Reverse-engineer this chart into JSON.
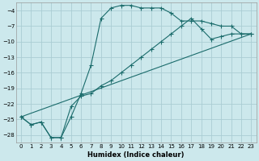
{
  "xlabel": "Humidex (Indice chaleur)",
  "bg_color": "#cce8ec",
  "grid_color": "#aacdd4",
  "line_color": "#1a6b6b",
  "xlim": [
    -0.5,
    23.5
  ],
  "ylim": [
    -29.5,
    -2.5
  ],
  "yticks": [
    -4,
    -7,
    -10,
    -13,
    -16,
    -19,
    -22,
    -25,
    -28
  ],
  "xticks": [
    0,
    1,
    2,
    3,
    4,
    5,
    6,
    7,
    8,
    9,
    10,
    11,
    12,
    13,
    14,
    15,
    16,
    17,
    18,
    19,
    20,
    21,
    22,
    23
  ],
  "curve1_x": [
    0,
    1,
    2,
    3,
    4,
    5,
    6,
    7,
    8,
    9,
    10,
    11,
    12,
    13,
    14,
    15,
    16,
    17,
    18,
    19,
    20,
    21,
    22,
    23
  ],
  "curve1_y": [
    -24.5,
    -26,
    -25.5,
    -28.5,
    -28.5,
    -24.5,
    -20.0,
    -14.5,
    -5.5,
    -3.5,
    -3.0,
    -3.0,
    -3.5,
    -3.5,
    -3.5,
    -4.5,
    -6.0,
    -6.0,
    -6.0,
    -6.5,
    -7.0,
    -7.0,
    -8.5,
    -8.5
  ],
  "curve2_x": [
    0,
    1,
    2,
    3,
    4,
    5,
    6,
    7,
    8,
    9,
    10,
    11,
    12,
    13,
    14,
    15,
    16,
    17,
    18,
    19,
    20,
    21,
    22,
    23
  ],
  "curve2_y": [
    -24.5,
    -26,
    -25.5,
    -28.5,
    -28.5,
    -22.5,
    -20.5,
    -20.0,
    -18.5,
    -17.5,
    -16.0,
    -14.5,
    -13.0,
    -11.5,
    -10.0,
    -8.5,
    -7.0,
    -5.5,
    -7.5,
    -9.5,
    -9.0,
    -8.5,
    -8.5,
    -8.5
  ],
  "curve3_x": [
    0,
    23
  ],
  "curve3_y": [
    -24.5,
    -8.5
  ]
}
